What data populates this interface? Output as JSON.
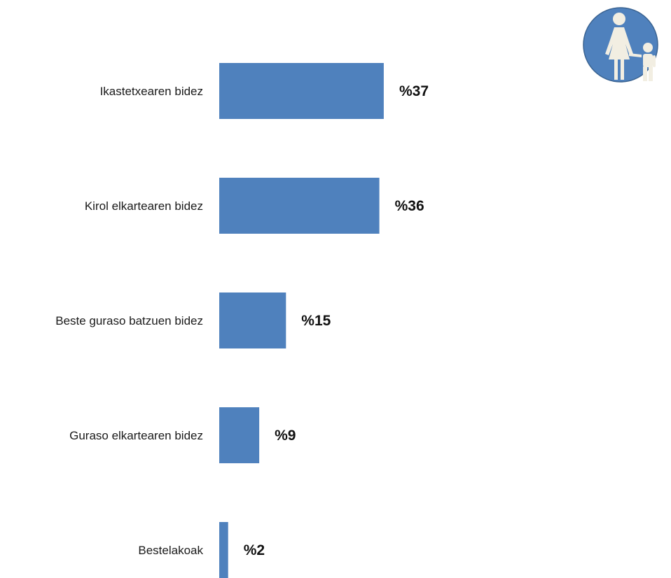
{
  "chart_data": {
    "type": "bar",
    "orientation": "horizontal",
    "categories": [
      "Ikastetxearen bidez",
      "Kirol elkartearen bidez",
      "Beste guraso batzuen bidez",
      "Guraso elkartearen bidez",
      "Bestelakoak"
    ],
    "values": [
      37,
      36,
      15,
      9,
      2
    ],
    "value_labels": [
      "%37",
      "%36",
      "%15",
      "%9",
      "%2"
    ],
    "title": "",
    "xlabel": "",
    "ylabel": "",
    "xlim": [
      0,
      100
    ],
    "grid": false,
    "legend": "none",
    "bar_color": "#4F81BD"
  },
  "icon": {
    "name": "parent-child-icon",
    "circle_color": "#4F81BD",
    "figure_color": "#F2EEE2",
    "border_color": "#3A6391"
  }
}
